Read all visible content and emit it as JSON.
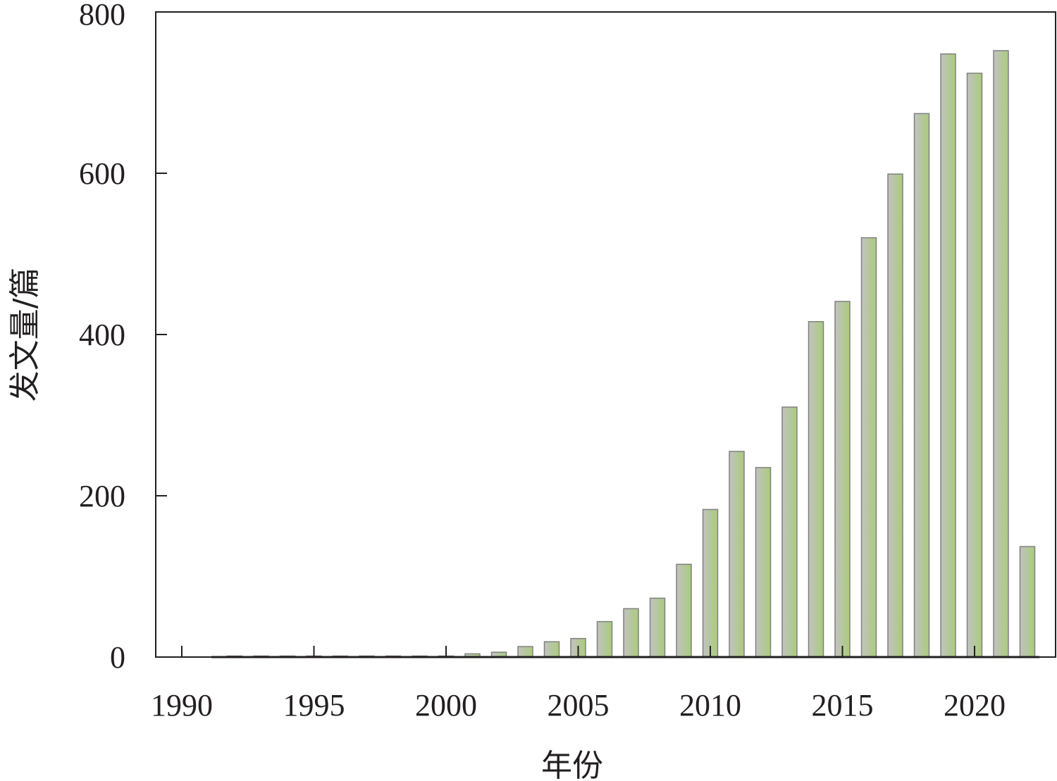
{
  "chart_data": {
    "type": "bar",
    "xlabel": "年份",
    "ylabel": "发文量/篇",
    "ylim": [
      0,
      800
    ],
    "xlim": [
      1990,
      2022.5
    ],
    "yticks": [
      0,
      200,
      400,
      600,
      800
    ],
    "xticks": [
      1990,
      1995,
      2000,
      2005,
      2010,
      2015,
      2020
    ],
    "grid": false,
    "legend": "none",
    "colors": {
      "bar_fill": "#a9cc7a",
      "bar_shade": "#c2c2c2",
      "bar_edge": "#808080",
      "axis": "#231f20"
    },
    "x": [
      1992,
      1993,
      1994,
      1995,
      1996,
      1997,
      1998,
      1999,
      2000,
      2001,
      2002,
      2003,
      2004,
      2005,
      2006,
      2007,
      2008,
      2009,
      2010,
      2011,
      2012,
      2013,
      2014,
      2015,
      2016,
      2017,
      2018,
      2019,
      2020,
      2021,
      2022
    ],
    "values": [
      1,
      0,
      0,
      0,
      0,
      1,
      1,
      1,
      1,
      4,
      6,
      13,
      19,
      23,
      44,
      60,
      73,
      115,
      183,
      255,
      235,
      310,
      416,
      441,
      520,
      599,
      674,
      748,
      724,
      752,
      137
    ]
  }
}
